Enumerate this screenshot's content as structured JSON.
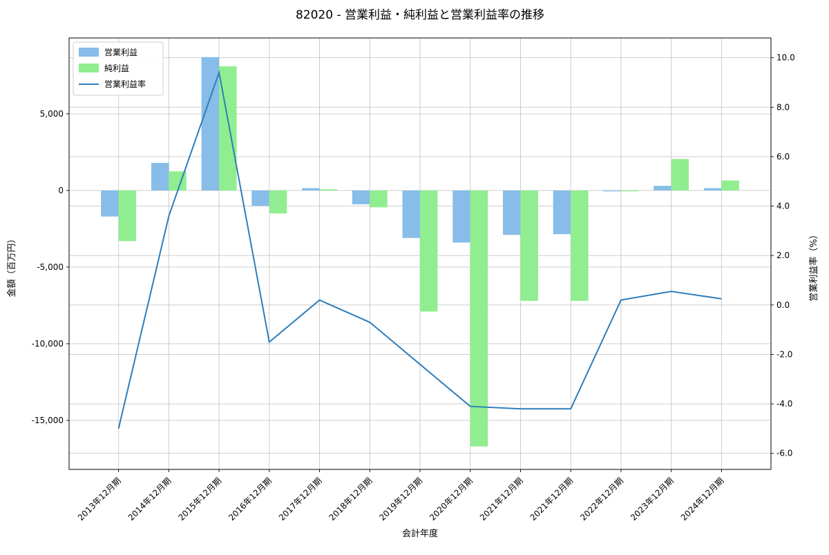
{
  "chart_data": {
    "type": "bar",
    "title": "82020 - 営業利益・純利益と営業利益率の推移",
    "xlabel": "会計年度",
    "ylabel_left": "金額（百万円）",
    "ylabel_right": "営業利益率（%）",
    "categories": [
      "2013年12月期",
      "2014年12月期",
      "2015年12月期",
      "2016年12月期",
      "2017年12月期",
      "2018年12月期",
      "2019年12月期",
      "2020年12月期",
      "2021年12月期",
      "2021年12月期",
      "2022年12月期",
      "2023年12月期",
      "2024年12月期"
    ],
    "series": [
      {
        "id": "operating-profit",
        "name": "営業利益",
        "type": "bar",
        "axis": "left",
        "color": "#87bde8",
        "values": [
          -1700,
          1800,
          8700,
          -1000,
          150,
          -900,
          -3100,
          -3400,
          -2900,
          -2850,
          -60,
          300,
          150
        ]
      },
      {
        "id": "net-profit",
        "name": "純利益",
        "type": "bar",
        "axis": "left",
        "color": "#90ee90",
        "values": [
          -3300,
          1250,
          8100,
          -1500,
          80,
          -1100,
          -7900,
          -16700,
          -7200,
          -7200,
          -60,
          2050,
          650
        ]
      },
      {
        "id": "operating-margin",
        "name": "営業利益率",
        "type": "line",
        "axis": "right",
        "color": "#2d7dbb",
        "values": [
          -5.0,
          3.6,
          9.4,
          -1.5,
          0.2,
          -0.7,
          -2.4,
          -4.1,
          -4.2,
          -4.2,
          0.2,
          0.55,
          0.25
        ]
      }
    ],
    "yticks_left": [
      {
        "value": 5000,
        "label": "5,000"
      },
      {
        "value": 0,
        "label": "0"
      },
      {
        "value": -5000,
        "label": "-5,000"
      },
      {
        "value": -10000,
        "label": "-10,000"
      },
      {
        "value": -15000,
        "label": "-15,000"
      }
    ],
    "yticks_right": [
      {
        "value": 10,
        "label": "10.0"
      },
      {
        "value": 8,
        "label": "8.0"
      },
      {
        "value": 6,
        "label": "6.0"
      },
      {
        "value": 4,
        "label": "4.0"
      },
      {
        "value": 2,
        "label": "2.0"
      },
      {
        "value": 0,
        "label": "0.0"
      },
      {
        "value": -2,
        "label": "-2.0"
      },
      {
        "value": -4,
        "label": "-4.0"
      },
      {
        "value": -6,
        "label": "-6.0"
      }
    ],
    "ylim_left": [
      -18200,
      9950
    ],
    "ylim_right": [
      -6.65,
      10.8
    ],
    "grid": true,
    "legend_position": "upper-left"
  }
}
